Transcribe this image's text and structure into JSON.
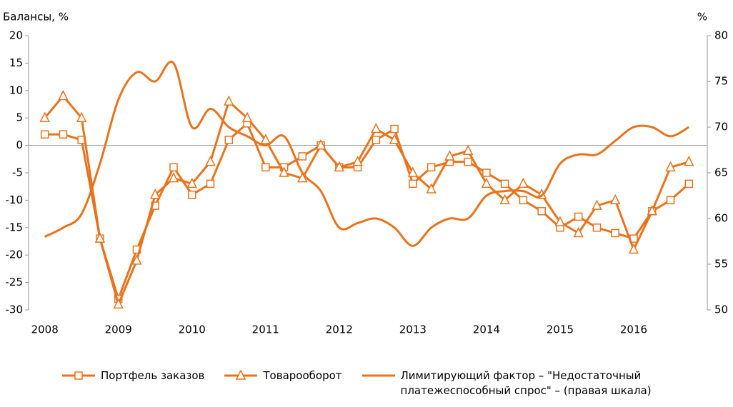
{
  "chart_data": {
    "type": "line",
    "y_label": "Балансы, %",
    "y2_label": "%",
    "x": [
      2008,
      2008.25,
      2008.5,
      2008.75,
      2009,
      2009.25,
      2009.5,
      2009.75,
      2010,
      2010.25,
      2010.5,
      2010.75,
      2011,
      2011.25,
      2011.5,
      2011.75,
      2012,
      2012.25,
      2012.5,
      2012.75,
      2013,
      2013.25,
      2013.5,
      2013.75,
      2014,
      2014.25,
      2014.5,
      2014.75,
      2015,
      2015.25,
      2015.5,
      2015.75,
      2016,
      2016.25,
      2016.5,
      2016.75
    ],
    "xlim": [
      2007.78,
      2017
    ],
    "xticks": [
      2008,
      2009,
      2010,
      2011,
      2012,
      2013,
      2014,
      2015,
      2016
    ],
    "ylim": [
      -30,
      20
    ],
    "yticks": [
      -30,
      -25,
      -20,
      -15,
      -10,
      -5,
      0,
      5,
      10,
      15,
      20
    ],
    "y2lim": [
      50,
      80
    ],
    "y2ticks": [
      50,
      55,
      60,
      65,
      70,
      75,
      80
    ],
    "series": [
      {
        "name": "Портфель заказов",
        "color": "#e8731c",
        "marker": "square",
        "values": [
          2,
          2,
          1,
          -17,
          -28,
          -19,
          -11,
          -4,
          -9,
          -7,
          1,
          4,
          -4,
          -4,
          -2,
          0,
          -4,
          -4,
          1,
          3,
          -7,
          -4,
          -3,
          -3,
          -5,
          -7,
          -10,
          -12,
          -15,
          -13,
          -15,
          -16,
          -17,
          -12,
          -10,
          -7
        ]
      },
      {
        "name": "Товарооборот",
        "color": "#e8731c",
        "marker": "triangle",
        "values": [
          5,
          9,
          5,
          -17,
          -29,
          -21,
          -9,
          -6,
          -7,
          -3,
          8,
          5,
          1,
          -5,
          -6,
          0,
          -4,
          -3,
          3,
          1,
          -5,
          -8,
          -2,
          -1,
          -7,
          -10,
          -7,
          -9,
          -14,
          -16,
          -11,
          -10,
          -19,
          -12,
          -4,
          -3
        ]
      },
      {
        "name": "Лимитирующий фактор – \"Недостаточный платежеспособный спрос\" – (правая шкала)",
        "color": "#e8731c",
        "axis": "y2",
        "smooth": true,
        "values": [
          58,
          59,
          60.5,
          66,
          73,
          76,
          75,
          77,
          70,
          72,
          70,
          69,
          68,
          69,
          65,
          63,
          59,
          59.5,
          60,
          59,
          57,
          59,
          60,
          60,
          62.5,
          63,
          63,
          62.5,
          66,
          67,
          67,
          68.5,
          70,
          70,
          69,
          70
        ]
      }
    ]
  }
}
